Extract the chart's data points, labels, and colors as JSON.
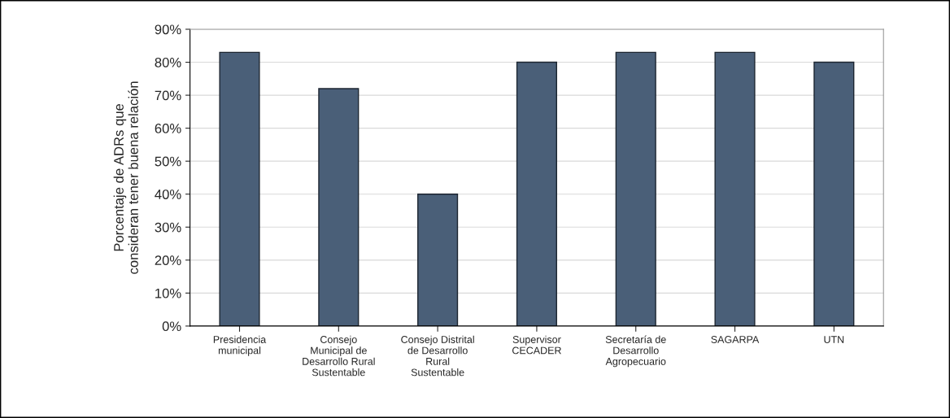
{
  "chart_data": {
    "type": "bar",
    "ylabel": "Porcentaje de ADRs que\nconsideran tener buena relación",
    "categories": [
      "Presidencia\nmunicipal",
      "Consejo\nMunicipal de\nDesarrollo Rural\nSustentable",
      "Consejo Distrital\nde Desarrollo\nRural\nSustentable",
      "Supervisor\nCECADER",
      "Secretaría de\nDesarrollo\nAgropecuario",
      "SAGARPA",
      "UTN"
    ],
    "values": [
      83,
      72,
      40,
      80,
      83,
      83,
      80
    ],
    "color": "#4a5f78",
    "ylim": [
      0,
      90
    ],
    "yticks": [
      {
        "value": 0,
        "label": "0%"
      },
      {
        "value": 10,
        "label": "10%"
      },
      {
        "value": 20,
        "label": "20%"
      },
      {
        "value": 30,
        "label": "30%"
      },
      {
        "value": 40,
        "label": "40%"
      },
      {
        "value": 50,
        "label": "50%"
      },
      {
        "value": 60,
        "label": "60%"
      },
      {
        "value": 70,
        "label": "70%"
      },
      {
        "value": 80,
        "label": "80%"
      },
      {
        "value": 90,
        "label": "90%"
      }
    ],
    "grid": "y"
  }
}
